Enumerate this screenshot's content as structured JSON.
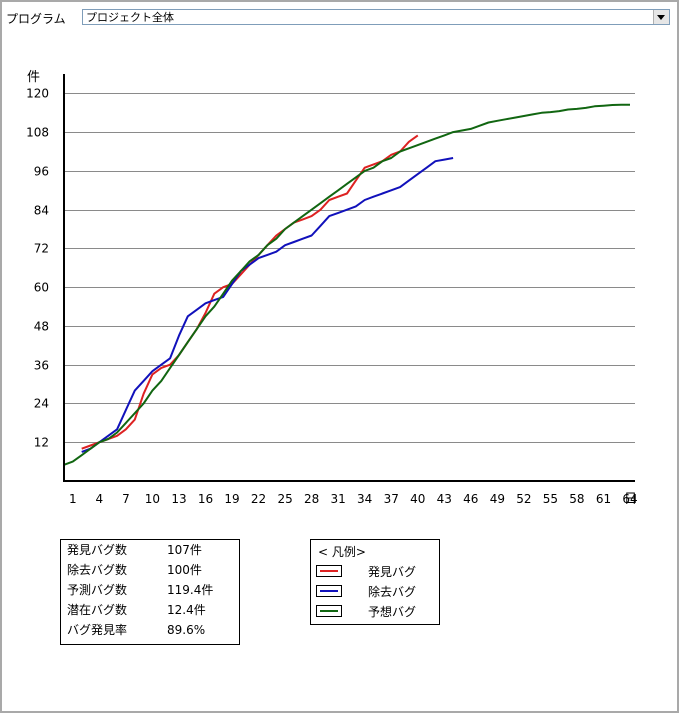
{
  "toolbar": {
    "program_label": "プログラム",
    "program_select_value": "プロジェクト全体"
  },
  "chart_data": {
    "type": "line",
    "ylabel": "件",
    "xlabel": "日",
    "xlim": [
      0,
      64
    ],
    "ylim": [
      0,
      126
    ],
    "x_ticks": [
      1,
      4,
      7,
      10,
      13,
      16,
      19,
      22,
      25,
      28,
      31,
      34,
      37,
      40,
      43,
      46,
      49,
      52,
      55,
      58,
      61,
      64
    ],
    "y_ticks": [
      12,
      24,
      36,
      48,
      60,
      72,
      84,
      96,
      108,
      120
    ],
    "grid": "horizontal",
    "series": [
      {
        "name": "発見バグ",
        "color": "#dd2222",
        "points": [
          [
            2,
            10
          ],
          [
            3,
            11
          ],
          [
            4,
            12
          ],
          [
            5,
            13
          ],
          [
            6,
            14
          ],
          [
            7,
            16
          ],
          [
            8,
            19
          ],
          [
            9,
            27
          ],
          [
            10,
            33
          ],
          [
            11,
            35
          ],
          [
            12,
            36
          ],
          [
            13,
            39
          ],
          [
            14,
            43
          ],
          [
            15,
            47
          ],
          [
            16,
            52
          ],
          [
            17,
            58
          ],
          [
            18,
            60
          ],
          [
            19,
            61
          ],
          [
            20,
            64
          ],
          [
            21,
            67
          ],
          [
            22,
            70
          ],
          [
            23,
            73
          ],
          [
            24,
            76
          ],
          [
            25,
            78
          ],
          [
            26,
            80
          ],
          [
            27,
            81
          ],
          [
            28,
            82
          ],
          [
            29,
            84
          ],
          [
            30,
            87
          ],
          [
            31,
            88
          ],
          [
            32,
            89
          ],
          [
            33,
            93
          ],
          [
            34,
            97
          ],
          [
            35,
            98
          ],
          [
            36,
            99
          ],
          [
            37,
            101
          ],
          [
            38,
            102
          ],
          [
            39,
            105
          ],
          [
            40,
            107
          ]
        ]
      },
      {
        "name": "除去バグ",
        "color": "#1111bb",
        "points": [
          [
            2,
            9
          ],
          [
            3,
            10
          ],
          [
            4,
            12
          ],
          [
            5,
            14
          ],
          [
            6,
            16
          ],
          [
            7,
            22
          ],
          [
            8,
            28
          ],
          [
            9,
            31
          ],
          [
            10,
            34
          ],
          [
            11,
            36
          ],
          [
            12,
            38
          ],
          [
            13,
            45
          ],
          [
            14,
            51
          ],
          [
            15,
            53
          ],
          [
            16,
            55
          ],
          [
            17,
            56
          ],
          [
            18,
            57
          ],
          [
            19,
            61
          ],
          [
            20,
            65
          ],
          [
            21,
            67
          ],
          [
            22,
            69
          ],
          [
            23,
            70
          ],
          [
            24,
            71
          ],
          [
            25,
            73
          ],
          [
            26,
            74
          ],
          [
            27,
            75
          ],
          [
            28,
            76
          ],
          [
            29,
            79
          ],
          [
            30,
            82
          ],
          [
            31,
            83
          ],
          [
            32,
            84
          ],
          [
            33,
            85
          ],
          [
            34,
            87
          ],
          [
            35,
            88
          ],
          [
            36,
            89
          ],
          [
            37,
            90
          ],
          [
            38,
            91
          ],
          [
            39,
            93
          ],
          [
            40,
            95
          ],
          [
            41,
            97
          ],
          [
            42,
            99
          ],
          [
            43,
            99.5
          ],
          [
            44,
            100
          ]
        ]
      },
      {
        "name": "予想バグ",
        "color": "#116611",
        "points": [
          [
            0,
            5
          ],
          [
            1,
            6
          ],
          [
            2,
            8
          ],
          [
            3,
            10
          ],
          [
            4,
            12
          ],
          [
            5,
            13
          ],
          [
            6,
            15
          ],
          [
            7,
            18
          ],
          [
            8,
            21
          ],
          [
            9,
            24
          ],
          [
            10,
            28
          ],
          [
            11,
            31
          ],
          [
            12,
            35
          ],
          [
            13,
            39
          ],
          [
            14,
            43
          ],
          [
            15,
            47
          ],
          [
            16,
            51
          ],
          [
            17,
            54
          ],
          [
            18,
            58
          ],
          [
            19,
            62
          ],
          [
            20,
            65
          ],
          [
            21,
            68
          ],
          [
            22,
            70
          ],
          [
            23,
            73
          ],
          [
            24,
            75
          ],
          [
            25,
            78
          ],
          [
            26,
            80
          ],
          [
            27,
            82
          ],
          [
            28,
            84
          ],
          [
            29,
            86
          ],
          [
            30,
            88
          ],
          [
            31,
            90
          ],
          [
            32,
            92
          ],
          [
            33,
            94
          ],
          [
            34,
            96
          ],
          [
            35,
            97
          ],
          [
            36,
            99
          ],
          [
            37,
            100
          ],
          [
            38,
            102
          ],
          [
            39,
            103
          ],
          [
            40,
            104
          ],
          [
            41,
            105
          ],
          [
            42,
            106
          ],
          [
            43,
            107
          ],
          [
            44,
            108
          ],
          [
            45,
            108.5
          ],
          [
            46,
            109
          ],
          [
            47,
            110
          ],
          [
            48,
            111
          ],
          [
            49,
            111.5
          ],
          [
            50,
            112
          ],
          [
            51,
            112.5
          ],
          [
            52,
            113
          ],
          [
            53,
            113.5
          ],
          [
            54,
            114
          ],
          [
            55,
            114.2
          ],
          [
            56,
            114.5
          ],
          [
            57,
            115
          ],
          [
            58,
            115.2
          ],
          [
            59,
            115.5
          ],
          [
            60,
            116
          ],
          [
            61,
            116.2
          ],
          [
            62,
            116.4
          ],
          [
            63,
            116.5
          ],
          [
            64,
            116.5
          ]
        ]
      }
    ]
  },
  "stats": [
    {
      "label": "発見バグ数",
      "value": "107件"
    },
    {
      "label": "除去バグ数",
      "value": "100件"
    },
    {
      "label": "予測バグ数",
      "value": "119.4件"
    },
    {
      "label": "潜在バグ数",
      "value": "12.4件"
    },
    {
      "label": "バグ発見率",
      "value": "89.6%"
    }
  ],
  "legend": {
    "title": "< 凡例>",
    "items": [
      {
        "label": "発見バグ",
        "color": "#dd2222"
      },
      {
        "label": "除去バグ",
        "color": "#1111bb"
      },
      {
        "label": "予想バグ",
        "color": "#116611"
      }
    ]
  }
}
